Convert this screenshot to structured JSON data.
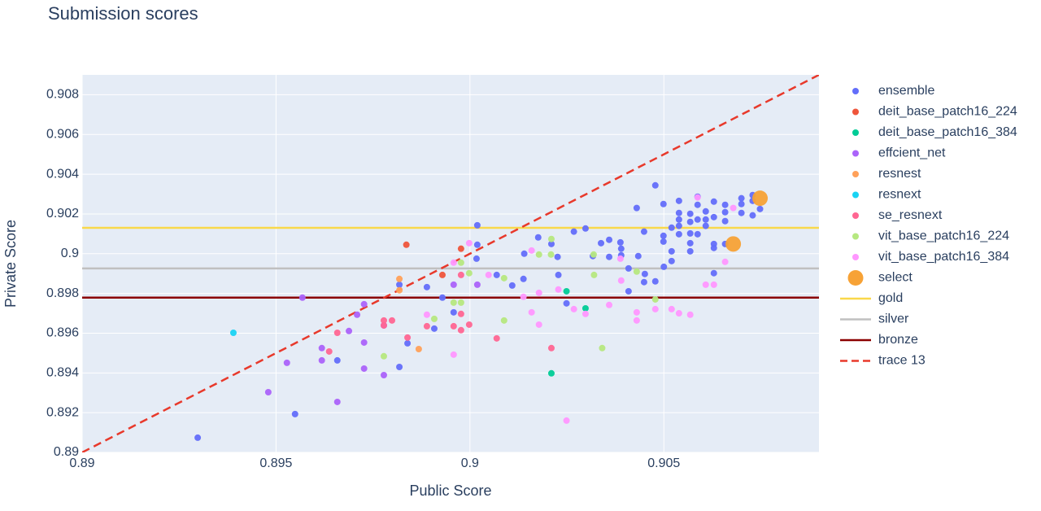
{
  "chart_data": {
    "type": "scatter",
    "title": "Submission scores",
    "x_label": "Public Score",
    "y_label": "Private Score",
    "xlim": [
      0.89,
      0.909
    ],
    "ylim": [
      0.89,
      0.909
    ],
    "xticks": [
      0.89,
      0.895,
      0.9,
      0.905
    ],
    "yticks": [
      0.89,
      0.892,
      0.894,
      0.896,
      0.898,
      0.9,
      0.902,
      0.904,
      0.906,
      0.908
    ],
    "grid": true,
    "legend": "right",
    "series": [
      {
        "name": "ensemble",
        "color": "#636efa",
        "mode": "markers",
        "size": 8,
        "x": [
          0.89298,
          0.89549,
          0.89658,
          0.89818,
          0.89839,
          0.89818,
          0.89889,
          0.89908,
          0.89929,
          0.89958,
          0.90017,
          0.90019,
          0.90019,
          0.90069,
          0.90109,
          0.90138,
          0.9014,
          0.90176,
          0.9021,
          0.90226,
          0.90228,
          0.90249,
          0.90268,
          0.90298,
          0.90317,
          0.90338,
          0.90359,
          0.90359,
          0.90388,
          0.9039,
          0.9039,
          0.90409,
          0.90409,
          0.9043,
          0.90434,
          0.90449,
          0.90451,
          0.90449,
          0.90478,
          0.90478,
          0.90499,
          0.90499,
          0.90499,
          0.905,
          0.9052,
          0.9052,
          0.9052,
          0.90539,
          0.90539,
          0.90539,
          0.90539,
          0.90539,
          0.90568,
          0.90568,
          0.90568,
          0.90568,
          0.90568,
          0.90587,
          0.90587,
          0.90587,
          0.90587,
          0.90608,
          0.90608,
          0.90608,
          0.90629,
          0.90629,
          0.90629,
          0.90629,
          0.90629,
          0.90658,
          0.90658,
          0.90658,
          0.90658,
          0.907,
          0.907,
          0.907,
          0.90729,
          0.90729,
          0.90748,
          0.90729
        ],
        "y": [
          0.89074,
          0.89193,
          0.89463,
          0.8943,
          0.89549,
          0.89844,
          0.89832,
          0.89623,
          0.89779,
          0.89705,
          0.89975,
          0.90143,
          0.90045,
          0.89893,
          0.8984,
          0.89873,
          0.9,
          0.90082,
          0.90049,
          0.89984,
          0.89893,
          0.8975,
          0.90111,
          0.90127,
          0.89988,
          0.90053,
          0.9007,
          0.89984,
          0.90057,
          0.90025,
          0.89992,
          0.89926,
          0.89811,
          0.9023,
          0.89988,
          0.90111,
          0.89898,
          0.89857,
          0.90344,
          0.89861,
          0.9025,
          0.9009,
          0.90061,
          0.89934,
          0.90131,
          0.90012,
          0.89963,
          0.90266,
          0.90205,
          0.90172,
          0.9014,
          0.90098,
          0.90201,
          0.9016,
          0.90102,
          0.90053,
          0.90012,
          0.90287,
          0.90246,
          0.90172,
          0.90098,
          0.90213,
          0.90172,
          0.9014,
          0.90262,
          0.90184,
          0.90049,
          0.90029,
          0.89902,
          0.90246,
          0.90209,
          0.90164,
          0.90049,
          0.90279,
          0.9025,
          0.90205,
          0.90266,
          0.90193,
          0.90225,
          0.90295
        ]
      },
      {
        "name": "deit_base_patch16_224",
        "color": "#ef553b",
        "mode": "markers",
        "size": 8,
        "x": [
          0.89836,
          0.89929,
          0.89977
        ],
        "y": [
          0.90045,
          0.89893,
          0.90025
        ]
      },
      {
        "name": "deit_base_patch16_384",
        "color": "#00cc96",
        "mode": "markers",
        "size": 8,
        "x": [
          0.9021,
          0.90249,
          0.90298
        ],
        "y": [
          0.89398,
          0.89811,
          0.89725
        ]
      },
      {
        "name": "effcient_net",
        "color": "#ab63fa",
        "mode": "markers",
        "size": 8,
        "x": [
          0.8948,
          0.89528,
          0.89568,
          0.89618,
          0.89618,
          0.89658,
          0.89688,
          0.89709,
          0.89727,
          0.89727,
          0.89727,
          0.89778,
          0.89778,
          0.89958,
          0.90019
        ],
        "y": [
          0.89303,
          0.89451,
          0.89779,
          0.89525,
          0.89463,
          0.89254,
          0.89611,
          0.89693,
          0.89746,
          0.89553,
          0.89422,
          0.89389,
          0.89639,
          0.89844,
          0.89844
        ]
      },
      {
        "name": "resnest",
        "color": "#ffa15a",
        "mode": "markers",
        "size": 8,
        "x": [
          0.89818,
          0.89818,
          0.89868
        ],
        "y": [
          0.89873,
          0.89816,
          0.8952
        ]
      },
      {
        "name": "resnext",
        "color": "#19d3f3",
        "mode": "markers",
        "size": 8,
        "x": [
          0.8939
        ],
        "y": [
          0.89602
        ]
      },
      {
        "name": "se_resnext",
        "color": "#ff6692",
        "mode": "markers",
        "size": 8,
        "x": [
          0.89637,
          0.89658,
          0.89778,
          0.89778,
          0.89799,
          0.89839,
          0.89889,
          0.89958,
          0.89977,
          0.89977,
          0.89998,
          0.89977,
          0.90069,
          0.9021
        ],
        "y": [
          0.89508,
          0.89602,
          0.89664,
          0.89639,
          0.89664,
          0.89578,
          0.89635,
          0.89635,
          0.89697,
          0.89615,
          0.89643,
          0.89893,
          0.89574,
          0.89525
        ]
      },
      {
        "name": "vit_base_patch16_224",
        "color": "#b6e880",
        "mode": "markers",
        "size": 8,
        "x": [
          0.89778,
          0.89908,
          0.89958,
          0.89977,
          0.89977,
          0.89998,
          0.90088,
          0.90088,
          0.90178,
          0.9021,
          0.90209,
          0.90319,
          0.9032,
          0.90341,
          0.90478,
          0.9043
        ],
        "y": [
          0.89484,
          0.89672,
          0.89754,
          0.89754,
          0.89955,
          0.89902,
          0.89664,
          0.89877,
          0.89996,
          0.90074,
          0.89996,
          0.89996,
          0.89893,
          0.89525,
          0.8977,
          0.8991
        ]
      },
      {
        "name": "vit_base_patch16_384",
        "color": "#ff97ff",
        "mode": "markers",
        "size": 8,
        "x": [
          0.89889,
          0.89958,
          0.89958,
          0.89998,
          0.90048,
          0.90138,
          0.90159,
          0.90159,
          0.90178,
          0.90178,
          0.90228,
          0.90249,
          0.90268,
          0.90298,
          0.90359,
          0.90388,
          0.9039,
          0.9043,
          0.9043,
          0.90478,
          0.9052,
          0.90539,
          0.90568,
          0.90587,
          0.90608,
          0.90629,
          0.90658,
          0.90679
        ],
        "y": [
          0.89693,
          0.89492,
          0.89955,
          0.90053,
          0.89893,
          0.89783,
          0.90016,
          0.89705,
          0.89643,
          0.89803,
          0.8982,
          0.8916,
          0.89721,
          0.89697,
          0.89742,
          0.89975,
          0.89865,
          0.89705,
          0.89664,
          0.89721,
          0.89721,
          0.897,
          0.89693,
          0.90283,
          0.89844,
          0.89844,
          0.89959,
          0.9023
        ]
      },
      {
        "name": "select",
        "color": "#f7a236",
        "mode": "markers",
        "size": 19,
        "x": [
          0.90679,
          0.90748
        ],
        "y": [
          0.90049,
          0.90279
        ]
      },
      {
        "name": "gold",
        "color": "#f9d84a",
        "mode": "lines",
        "x": [
          0.89,
          0.909
        ],
        "y": [
          0.9013,
          0.9013
        ]
      },
      {
        "name": "silver",
        "color": "#c0c0c0",
        "mode": "lines",
        "x": [
          0.89,
          0.909
        ],
        "y": [
          0.89926,
          0.89926
        ]
      },
      {
        "name": "bronze",
        "color": "#8b0000",
        "mode": "lines",
        "x": [
          0.89,
          0.909
        ],
        "y": [
          0.89779,
          0.89779
        ]
      },
      {
        "name": "trace 13",
        "color": "#e8392b",
        "mode": "lines",
        "dash": true,
        "x": [
          0.89,
          0.909
        ],
        "y": [
          0.89,
          0.909
        ]
      }
    ]
  }
}
